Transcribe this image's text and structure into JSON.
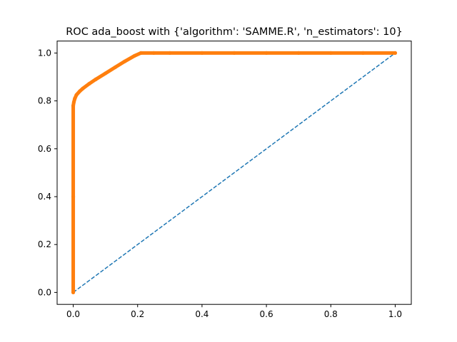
{
  "chart_data": {
    "type": "line",
    "title": "ROC ada_boost with {'algorithm': 'SAMME.R', 'n_estimators': 10}",
    "xlabel": "",
    "ylabel": "",
    "xlim": [
      -0.05,
      1.05
    ],
    "ylim": [
      -0.05,
      1.05
    ],
    "xticks": [
      0.0,
      0.2,
      0.4,
      0.6,
      0.8,
      1.0
    ],
    "yticks": [
      0.0,
      0.2,
      0.4,
      0.6,
      0.8,
      1.0
    ],
    "xtick_labels": [
      "0.0",
      "0.2",
      "0.4",
      "0.6",
      "0.8",
      "1.0"
    ],
    "ytick_labels": [
      "0.0",
      "0.2",
      "0.4",
      "0.6",
      "0.8",
      "1.0"
    ],
    "grid": false,
    "series": [
      {
        "style": "dashed",
        "color": "#1f77b4",
        "x": [
          0.0,
          1.0
        ],
        "y": [
          0.0,
          1.0
        ]
      },
      {
        "style": "solid-markers",
        "color": "#ff7f0e",
        "x": [
          0.0,
          0.0,
          0.0,
          0.002,
          0.005,
          0.01,
          0.02,
          0.03,
          0.05,
          0.07,
          0.1,
          0.13,
          0.16,
          0.19,
          0.21,
          0.25,
          0.3,
          0.4,
          0.5,
          0.6,
          0.7,
          0.8,
          0.9,
          1.0
        ],
        "y": [
          0.0,
          0.4,
          0.78,
          0.795,
          0.81,
          0.825,
          0.84,
          0.852,
          0.872,
          0.89,
          0.915,
          0.94,
          0.965,
          0.988,
          1.0,
          1.0,
          1.0,
          1.0,
          1.0,
          1.0,
          1.0,
          1.0,
          1.0,
          1.0
        ]
      }
    ]
  }
}
